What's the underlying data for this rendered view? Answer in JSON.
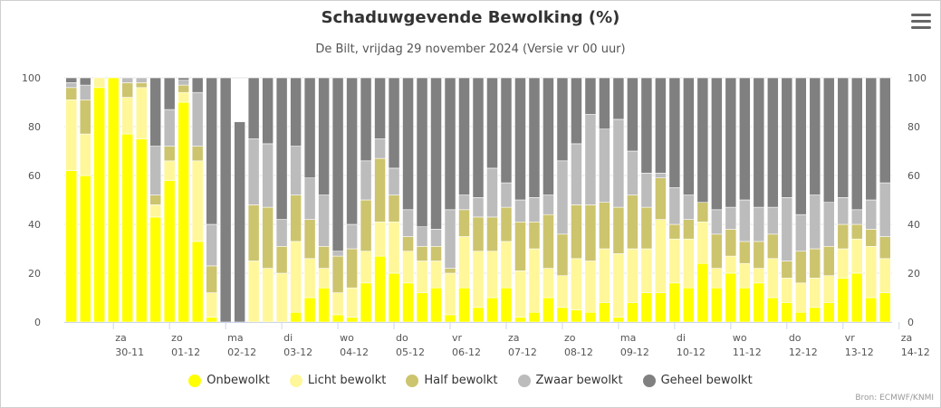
{
  "chart_data": {
    "type": "bar",
    "stacked": true,
    "title": "Schaduwgevende Bewolking (%)",
    "subtitle": "De Bilt, vrijdag 29 november 2024 (Versie vr 00 uur)",
    "credits": "Bron: ECMWF/KNMI",
    "ylim": [
      0,
      100
    ],
    "yticks": [
      0,
      20,
      40,
      60,
      80,
      100
    ],
    "grid": true,
    "legend_position": "bottom-center",
    "day_labels": [
      {
        "day": "za",
        "date": "30-11",
        "index": 3.5
      },
      {
        "day": "zo",
        "date": "01-12",
        "index": 7.5
      },
      {
        "day": "ma",
        "date": "02-12",
        "index": 11.5
      },
      {
        "day": "di",
        "date": "03-12",
        "index": 15.5
      },
      {
        "day": "wo",
        "date": "04-12",
        "index": 19.5
      },
      {
        "day": "do",
        "date": "05-12",
        "index": 23.5
      },
      {
        "day": "vr",
        "date": "06-12",
        "index": 27.5
      },
      {
        "day": "za",
        "date": "07-12",
        "index": 31.5
      },
      {
        "day": "zo",
        "date": "08-12",
        "index": 35.5
      },
      {
        "day": "ma",
        "date": "09-12",
        "index": 39.5
      },
      {
        "day": "di",
        "date": "10-12",
        "index": 43.5
      },
      {
        "day": "wo",
        "date": "11-12",
        "index": 47.5
      },
      {
        "day": "do",
        "date": "12-12",
        "index": 51.5
      },
      {
        "day": "vr",
        "date": "13-12",
        "index": 55.5
      },
      {
        "day": "za",
        "date": "14-12",
        "index": 59.5
      }
    ],
    "series": [
      {
        "name": "Onbewolkt",
        "color": "#ffff00",
        "values": [
          62,
          60,
          96,
          100,
          77,
          75,
          43,
          58,
          90,
          33,
          2,
          0,
          0,
          0,
          0,
          0,
          4,
          10,
          14,
          3,
          2,
          16,
          27,
          20,
          16,
          12,
          14,
          3,
          14,
          6,
          10,
          14,
          2,
          4,
          10,
          6,
          5,
          4,
          8,
          2,
          8,
          12,
          12,
          16,
          14,
          24,
          14,
          20,
          14,
          16,
          10,
          8,
          4,
          6,
          8,
          18,
          20,
          10,
          12
        ]
      },
      {
        "name": "Licht bewolkt",
        "color": "#fff799",
        "values": [
          29,
          17,
          4,
          0,
          15,
          21,
          5,
          8,
          4,
          33,
          10,
          0,
          0,
          25,
          22,
          20,
          29,
          16,
          8,
          9,
          12,
          13,
          14,
          21,
          13,
          13,
          11,
          17,
          21,
          23,
          19,
          19,
          19,
          26,
          12,
          13,
          21,
          21,
          22,
          26,
          22,
          18,
          30,
          18,
          20,
          17,
          8,
          7,
          10,
          6,
          16,
          10,
          12,
          12,
          11,
          12,
          14,
          21,
          14
        ]
      },
      {
        "name": "Half bewolkt",
        "color": "#cdc46e",
        "values": [
          5,
          14,
          0,
          0,
          6,
          2,
          4,
          6,
          3,
          6,
          11,
          0,
          0,
          23,
          25,
          11,
          19,
          16,
          9,
          15,
          16,
          21,
          26,
          11,
          6,
          6,
          6,
          2,
          11,
          14,
          14,
          14,
          20,
          11,
          22,
          17,
          22,
          23,
          19,
          19,
          22,
          17,
          17,
          6,
          8,
          8,
          14,
          11,
          9,
          11,
          10,
          7,
          13,
          12,
          12,
          10,
          6,
          7,
          9
        ]
      },
      {
        "name": "Zwaar bewolkt",
        "color": "#bcbcbc",
        "values": [
          2,
          6,
          0,
          0,
          2,
          2,
          20,
          15,
          2,
          22,
          17,
          0,
          0,
          27,
          26,
          11,
          20,
          17,
          21,
          2,
          10,
          16,
          8,
          11,
          11,
          8,
          7,
          24,
          6,
          8,
          20,
          10,
          9,
          10,
          8,
          30,
          25,
          37,
          30,
          36,
          18,
          14,
          2,
          15,
          10,
          0,
          10,
          9,
          17,
          14,
          11,
          26,
          15,
          22,
          18,
          11,
          6,
          12,
          22
        ]
      },
      {
        "name": "Geheel bewolkt",
        "color": "#808080",
        "values": [
          2,
          3,
          0,
          0,
          0,
          0,
          28,
          13,
          1,
          6,
          60,
          100,
          82,
          25,
          27,
          58,
          28,
          41,
          48,
          71,
          60,
          34,
          25,
          37,
          54,
          61,
          62,
          54,
          48,
          49,
          37,
          43,
          50,
          49,
          48,
          34,
          27,
          15,
          21,
          17,
          30,
          39,
          39,
          45,
          48,
          51,
          54,
          53,
          50,
          53,
          53,
          49,
          56,
          48,
          51,
          49,
          54,
          50,
          43
        ]
      }
    ]
  },
  "legend": {
    "items": [
      {
        "label": "Onbewolkt",
        "color": "#ffff00"
      },
      {
        "label": "Licht bewolkt",
        "color": "#fff799"
      },
      {
        "label": "Half bewolkt",
        "color": "#cdc46e"
      },
      {
        "label": "Zwaar bewolkt",
        "color": "#bcbcbc"
      },
      {
        "label": "Geheel bewolkt",
        "color": "#808080"
      }
    ]
  },
  "menu": {
    "icon": "hamburger-menu-icon"
  }
}
